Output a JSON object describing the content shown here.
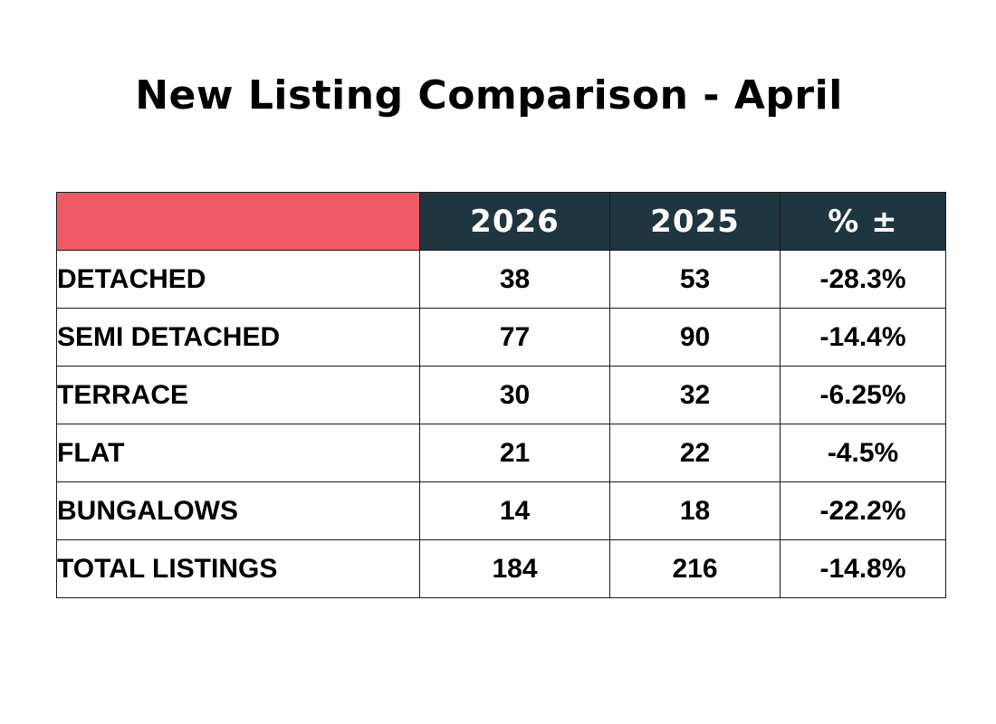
{
  "title": "New Listing Comparison - April",
  "colors": {
    "corner": "#f05a67",
    "header_bg": "#1f3540",
    "header_text": "#ffffff",
    "border": "#1a1a1a"
  },
  "chart_data": {
    "type": "table",
    "title": "New Listing Comparison - April",
    "columns": [
      "",
      "2026",
      "2025",
      "% ±"
    ],
    "rows": [
      {
        "label": "DETACHED",
        "y2026": "38",
        "y2025": "53",
        "pct": "-28.3%"
      },
      {
        "label": "SEMI DETACHED",
        "y2026": "77",
        "y2025": "90",
        "pct": "-14.4%"
      },
      {
        "label": "TERRACE",
        "y2026": "30",
        "y2025": "32",
        "pct": "-6.25%"
      },
      {
        "label": "FLAT",
        "y2026": "21",
        "y2025": "22",
        "pct": "-4.5%"
      },
      {
        "label": "BUNGALOWS",
        "y2026": "14",
        "y2025": "18",
        "pct": "-22.2%"
      },
      {
        "label": "TOTAL LISTINGS",
        "y2026": "184",
        "y2025": "216",
        "pct": "-14.8%"
      }
    ]
  }
}
